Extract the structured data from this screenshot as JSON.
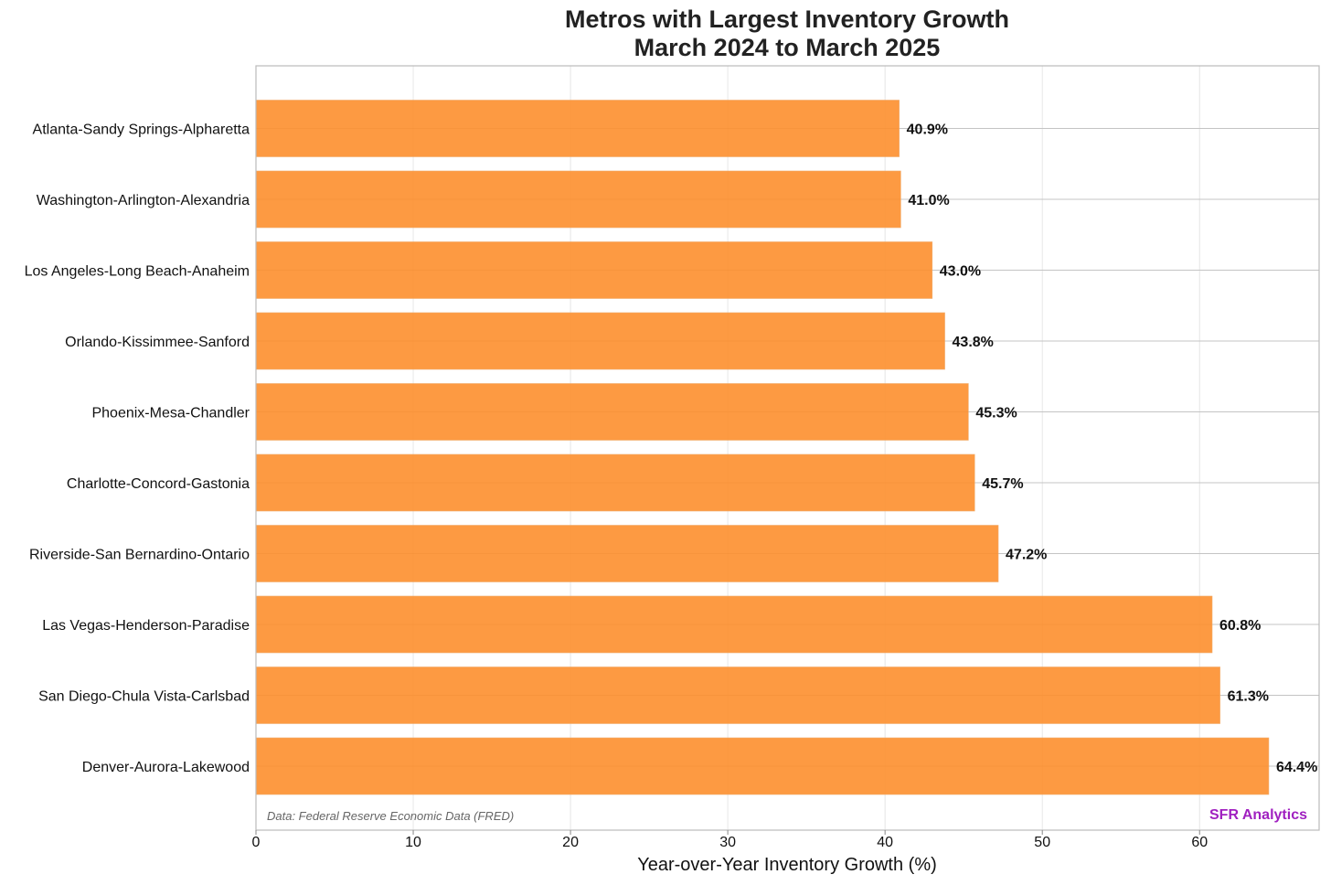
{
  "chart_data": {
    "type": "bar",
    "orientation": "horizontal",
    "title": "Metros with Largest Inventory Growth",
    "subtitle": "March 2024 to March 2025",
    "xlabel": "Year-over-Year Inventory Growth (%)",
    "ylabel": "",
    "xlim": [
      0,
      67.6
    ],
    "xticks": [
      0,
      10,
      20,
      30,
      40,
      50,
      60
    ],
    "grid": true,
    "categories": [
      "Atlanta-Sandy Springs-Alpharetta",
      "Washington-Arlington-Alexandria",
      "Los Angeles-Long Beach-Anaheim",
      "Orlando-Kissimmee-Sanford",
      "Phoenix-Mesa-Chandler",
      "Charlotte-Concord-Gastonia",
      "Riverside-San Bernardino-Ontario",
      "Las Vegas-Henderson-Paradise",
      "San Diego-Chula Vista-Carlsbad",
      "Denver-Aurora-Lakewood"
    ],
    "values": [
      40.9,
      41.0,
      43.0,
      43.8,
      45.3,
      45.7,
      47.2,
      60.8,
      61.3,
      64.4
    ],
    "value_labels": [
      "40.9%",
      "41.0%",
      "43.0%",
      "43.8%",
      "45.3%",
      "45.7%",
      "47.2%",
      "60.8%",
      "61.3%",
      "64.4%"
    ],
    "bar_color": "#fd8f2e",
    "source_note": "Data: Federal Reserve Economic Data (FRED)",
    "brand": "SFR Analytics",
    "brand_color": "#a020c0"
  }
}
